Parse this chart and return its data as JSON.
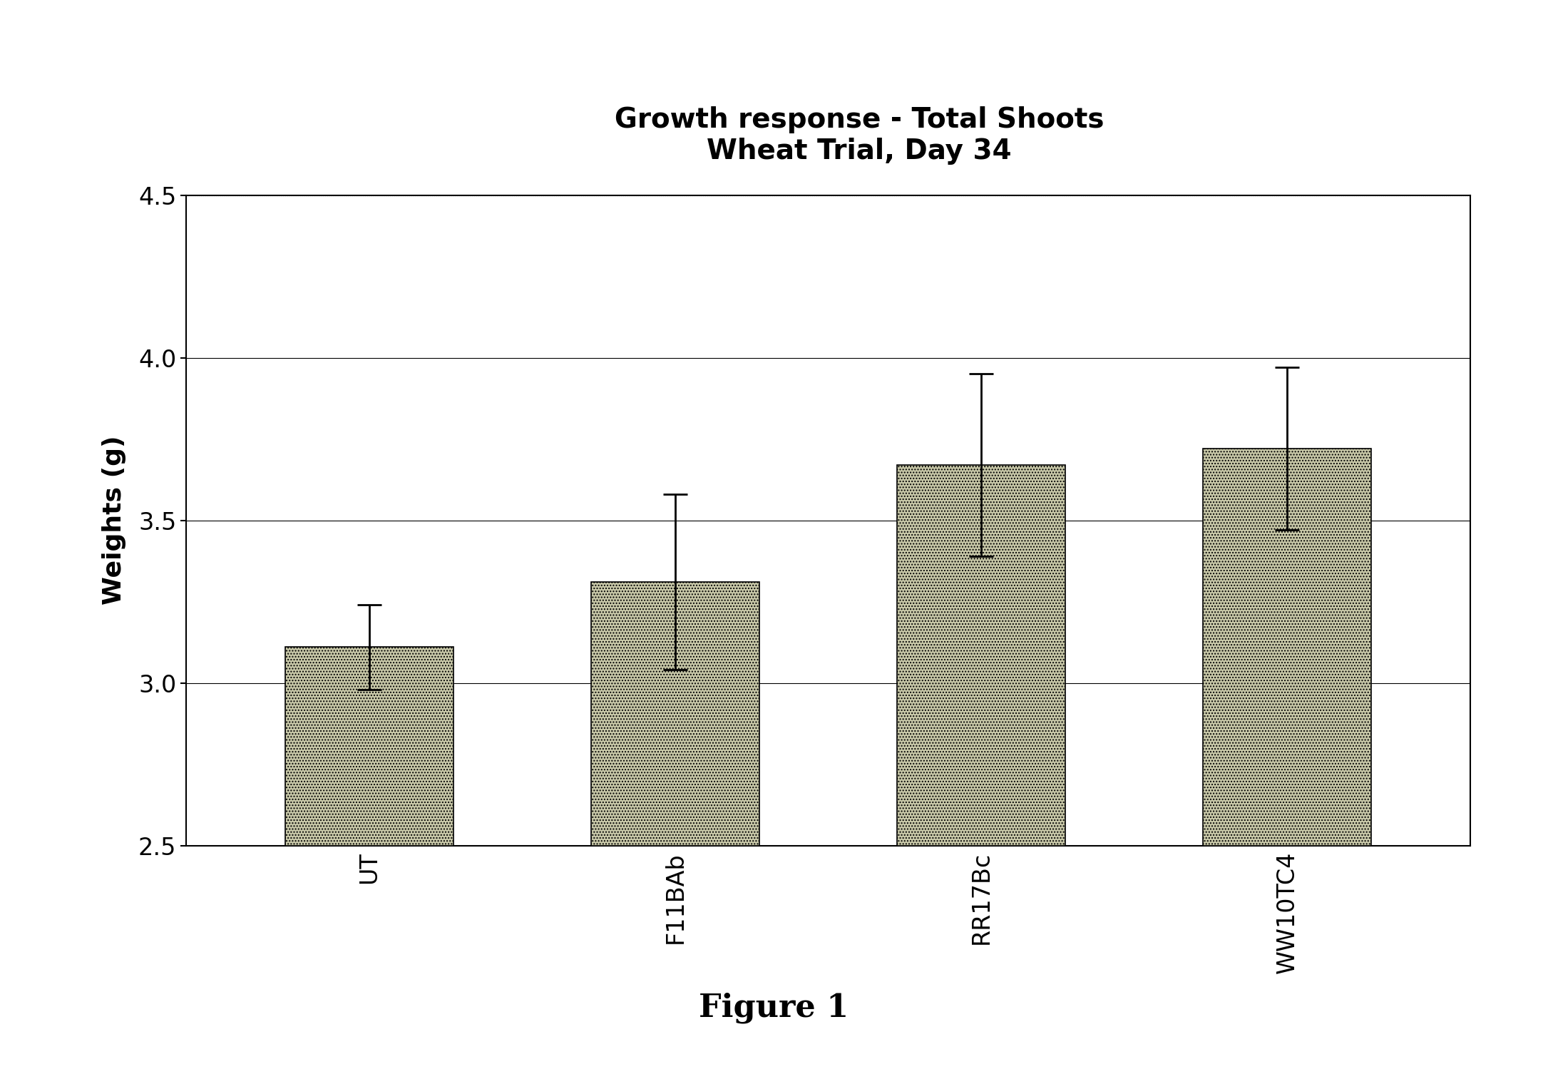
{
  "title_line1": "Growth response - Total Shoots",
  "title_line2": "Wheat Trial, Day 34",
  "categories": [
    "UT",
    "F11BAb",
    "RR17Bc",
    "WW10TC4"
  ],
  "values": [
    3.11,
    3.31,
    3.67,
    3.72
  ],
  "errors": [
    0.13,
    0.27,
    0.28,
    0.25
  ],
  "ylabel": "Weights (g)",
  "ylim": [
    2.5,
    4.5
  ],
  "yticks": [
    2.5,
    3.0,
    3.5,
    4.0,
    4.5
  ],
  "bar_color": "#c8c8a8",
  "bar_hatch": "....",
  "bar_edgecolor": "#000000",
  "figure_caption": "Figure 1",
  "background_color": "#ffffff",
  "title_fontsize": 28,
  "ylabel_fontsize": 26,
  "tick_fontsize": 24,
  "caption_fontsize": 32,
  "bar_bottom": 2.5
}
